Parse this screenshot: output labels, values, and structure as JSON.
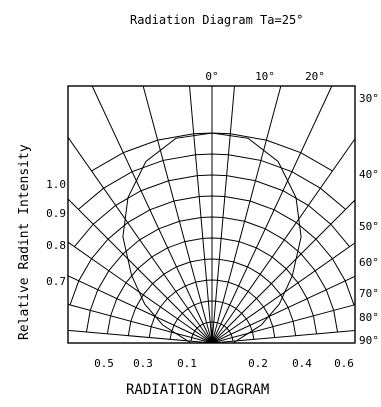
{
  "chart_data": {
    "type": "polar",
    "title": "Radiation Diagram  Ta=25°",
    "ylabel": "Relative Radint Intensity",
    "xlabel": "RADIATION DIAGRAM",
    "angle_labels": [
      "0°",
      "10°",
      "20°",
      "30°",
      "40°",
      "50°",
      "60°",
      "70°",
      "80°",
      "90°"
    ],
    "radial_labels_left": [
      "1.0",
      "0.9",
      "0.8",
      "0.7"
    ],
    "bottom_labels_left": [
      "0.5",
      "0.3",
      "0.1"
    ],
    "bottom_labels_right": [
      "0.2",
      "0.4",
      "0.6"
    ],
    "grid": true,
    "series": [
      {
        "angles_deg": [
          -90,
          -80,
          -70,
          -60,
          -50,
          -40,
          -30,
          -20,
          -10,
          0,
          10,
          20,
          30,
          40,
          50,
          60,
          70,
          80,
          90
        ],
        "values": [
          0.1,
          0.14,
          0.25,
          0.37,
          0.5,
          0.66,
          0.8,
          0.92,
          0.99,
          1.0,
          0.99,
          0.92,
          0.8,
          0.66,
          0.5,
          0.37,
          0.25,
          0.14,
          0.1
        ]
      }
    ]
  }
}
